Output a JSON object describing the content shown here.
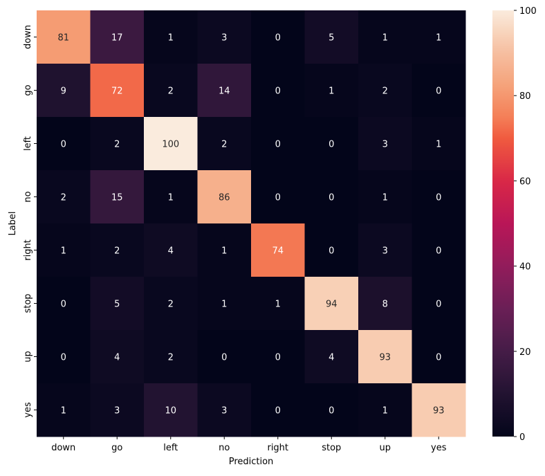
{
  "chart_data": {
    "type": "heatmap",
    "xlabel": "Prediction",
    "ylabel": "Label",
    "x_categories": [
      "down",
      "go",
      "left",
      "no",
      "right",
      "stop",
      "up",
      "yes"
    ],
    "y_categories": [
      "down",
      "go",
      "left",
      "no",
      "right",
      "stop",
      "up",
      "yes"
    ],
    "values": [
      [
        81,
        17,
        1,
        3,
        0,
        5,
        1,
        1
      ],
      [
        9,
        72,
        2,
        14,
        0,
        1,
        2,
        0
      ],
      [
        0,
        2,
        100,
        2,
        0,
        0,
        3,
        1
      ],
      [
        2,
        15,
        1,
        86,
        0,
        0,
        1,
        0
      ],
      [
        1,
        2,
        4,
        1,
        74,
        0,
        3,
        0
      ],
      [
        0,
        5,
        2,
        1,
        1,
        94,
        8,
        0
      ],
      [
        0,
        4,
        2,
        0,
        0,
        4,
        93,
        0
      ],
      [
        1,
        3,
        10,
        3,
        0,
        0,
        1,
        93
      ]
    ],
    "colorbar": {
      "range": [
        0,
        100
      ],
      "ticks": [
        0,
        20,
        40,
        60,
        80,
        100
      ],
      "colormap": "rocket"
    }
  }
}
